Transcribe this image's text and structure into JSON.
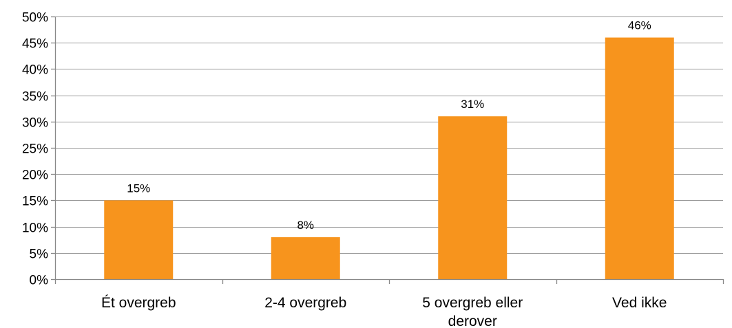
{
  "chart_data": {
    "type": "bar",
    "categories": [
      "Ét overgreb",
      "2-4 overgreb",
      "5 overgreb eller derover",
      "Ved ikke"
    ],
    "category_lines": [
      [
        "Ét overgreb"
      ],
      [
        "2-4 overgreb"
      ],
      [
        "5 overgreb eller",
        "derover"
      ],
      [
        "Ved ikke"
      ]
    ],
    "values": [
      15,
      8,
      31,
      46
    ],
    "data_labels": [
      "15%",
      "8%",
      "31%",
      "46%"
    ],
    "ylim": [
      0,
      50
    ],
    "yticks": [
      0,
      5,
      10,
      15,
      20,
      25,
      30,
      35,
      40,
      45,
      50
    ],
    "ytick_labels": [
      "0%",
      "5%",
      "10%",
      "15%",
      "20%",
      "25%",
      "30%",
      "35%",
      "40%",
      "45%",
      "50%"
    ],
    "title": "",
    "xlabel": "",
    "ylabel": "",
    "grid": true,
    "legend": "none",
    "bar_color": "#F7941D"
  }
}
